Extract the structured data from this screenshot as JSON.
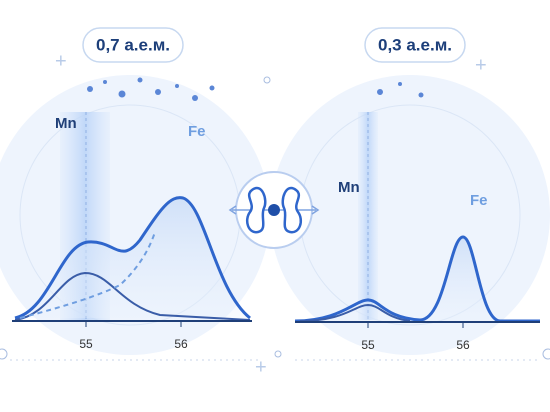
{
  "panels": [
    {
      "label": "0,7 а.е.м.",
      "peaks": [
        "Mn",
        "Fe"
      ],
      "ticks": [
        "55",
        "56"
      ]
    },
    {
      "label": "0,3 а.е.м.",
      "peaks": [
        "Mn",
        "Fe"
      ],
      "ticks": [
        "55",
        "56"
      ]
    }
  ]
}
